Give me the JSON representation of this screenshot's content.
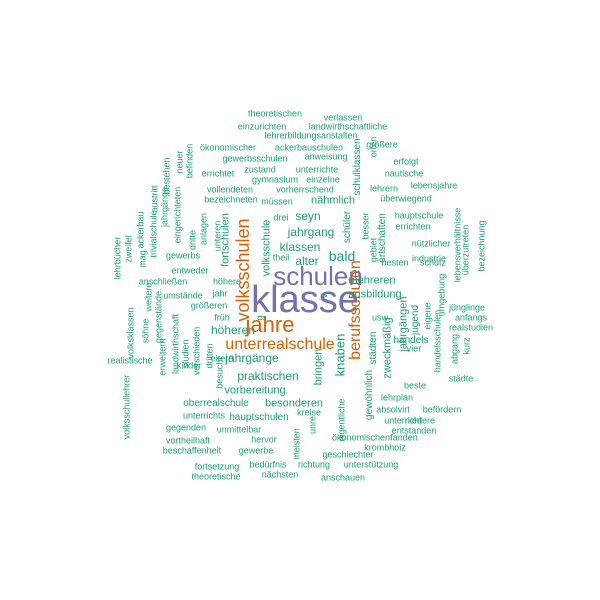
{
  "palette": {
    "teal": "#1b9e77",
    "orange": "#d95f02",
    "purple": "#7570b3"
  },
  "words": [
    {
      "text": "klasse",
      "color": "purple"
    },
    {
      "text": "schulen",
      "color": "purple"
    },
    {
      "text": "jahre",
      "color": "orange"
    },
    {
      "text": "volksschulen",
      "color": "orange"
    },
    {
      "text": "unterrealschule",
      "color": "orange"
    },
    {
      "text": "berufsschulen",
      "color": "orange"
    },
    {
      "text": "bald",
      "color": "teal"
    },
    {
      "text": "knaben",
      "color": "teal"
    },
    {
      "text": "jahrgang",
      "color": "teal"
    },
    {
      "text": "klassen",
      "color": "teal"
    },
    {
      "text": "seyn",
      "color": "teal"
    },
    {
      "text": "alter",
      "color": "teal"
    },
    {
      "text": "praktischen",
      "color": "teal"
    },
    {
      "text": "jahrgänge",
      "color": "teal"
    },
    {
      "text": "höheren",
      "color": "teal"
    },
    {
      "text": "ausbildung",
      "color": "teal"
    },
    {
      "text": "mehreren",
      "color": "teal"
    },
    {
      "text": "vorbereitung",
      "color": "teal"
    },
    {
      "text": "besonderen",
      "color": "teal"
    },
    {
      "text": "volksschule",
      "color": "teal"
    },
    {
      "text": "fortschulen",
      "color": "teal"
    },
    {
      "text": "nähmlich",
      "color": "teal"
    },
    {
      "text": "jahrgängen",
      "color": "teal"
    },
    {
      "text": "zweckmäßig",
      "color": "teal"
    },
    {
      "text": "bringen",
      "color": "teal"
    },
    {
      "text": "oberrealschule",
      "color": "teal"
    },
    {
      "text": "hauptschulen",
      "color": "teal"
    },
    {
      "text": "handels",
      "color": "teal"
    },
    {
      "text": "jugend",
      "color": "teal"
    },
    {
      "text": "gewöhnlich",
      "color": "teal"
    },
    {
      "text": "städten",
      "color": "teal"
    },
    {
      "text": "ortschaften",
      "color": "teal"
    },
    {
      "text": "schüler",
      "color": "teal"
    },
    {
      "text": "schulklassen",
      "color": "teal"
    },
    {
      "text": "iv",
      "color": "teal"
    },
    {
      "text": "theoretischen",
      "color": "teal"
    },
    {
      "text": "verlassen",
      "color": "teal"
    },
    {
      "text": "einzurichten",
      "color": "teal"
    },
    {
      "text": "landwirthschaftliche",
      "color": "teal"
    },
    {
      "text": "lehrerbildungsanstalten",
      "color": "teal"
    },
    {
      "text": "ökonomischer",
      "color": "teal"
    },
    {
      "text": "ackerbauschulen",
      "color": "teal"
    },
    {
      "text": "größere",
      "color": "teal"
    },
    {
      "text": "gewerbsschulen",
      "color": "teal"
    },
    {
      "text": "anweisung",
      "color": "teal"
    },
    {
      "text": "zustand",
      "color": "teal"
    },
    {
      "text": "unterrichte",
      "color": "teal"
    },
    {
      "text": "errichtet",
      "color": "teal"
    },
    {
      "text": "gymnasium",
      "color": "teal"
    },
    {
      "text": "einzelne",
      "color": "teal"
    },
    {
      "text": "vollendeten",
      "color": "teal"
    },
    {
      "text": "vorherrschend",
      "color": "teal"
    },
    {
      "text": "bezeichneten",
      "color": "teal"
    },
    {
      "text": "müssen",
      "color": "teal"
    },
    {
      "text": "erfolgt",
      "color": "teal"
    },
    {
      "text": "nautische",
      "color": "teal"
    },
    {
      "text": "lebensjahre",
      "color": "teal"
    },
    {
      "text": "lehrern",
      "color": "teal"
    },
    {
      "text": "überwiegend",
      "color": "teal"
    },
    {
      "text": "hauptschule",
      "color": "teal"
    },
    {
      "text": "errichten",
      "color": "teal"
    },
    {
      "text": "nützlicher",
      "color": "teal"
    },
    {
      "text": "industrie",
      "color": "teal"
    },
    {
      "text": "drei",
      "color": "teal"
    },
    {
      "text": "theil",
      "color": "teal"
    },
    {
      "text": "gewerbs",
      "color": "teal"
    },
    {
      "text": "entweder",
      "color": "teal"
    },
    {
      "text": "anschließen",
      "color": "teal"
    },
    {
      "text": "höhere",
      "color": "teal"
    },
    {
      "text": "umstände",
      "color": "teal"
    },
    {
      "text": "jahr",
      "color": "teal"
    },
    {
      "text": "größeren",
      "color": "teal"
    },
    {
      "text": "früh",
      "color": "teal"
    },
    {
      "text": "eltern",
      "color": "teal"
    },
    {
      "text": "kinder",
      "color": "teal"
    },
    {
      "text": "unterrichts",
      "color": "teal"
    },
    {
      "text": "gegenden",
      "color": "teal"
    },
    {
      "text": "unmittelbar",
      "color": "teal"
    },
    {
      "text": "vortheilhaft",
      "color": "teal"
    },
    {
      "text": "hervor",
      "color": "teal"
    },
    {
      "text": "beschaffenheit",
      "color": "teal"
    },
    {
      "text": "gewerbe",
      "color": "teal"
    },
    {
      "text": "fortsetzung",
      "color": "teal"
    },
    {
      "text": "bedürfnis",
      "color": "teal"
    },
    {
      "text": "richtung",
      "color": "teal"
    },
    {
      "text": "unterstützung",
      "color": "teal"
    },
    {
      "text": "theoretische",
      "color": "teal"
    },
    {
      "text": "nächsten",
      "color": "teal"
    },
    {
      "text": "anschauen",
      "color": "teal"
    },
    {
      "text": "kreise",
      "color": "teal"
    },
    {
      "text": "ökonomischen",
      "color": "teal"
    },
    {
      "text": "fanden",
      "color": "teal"
    },
    {
      "text": "krombholz",
      "color": "teal"
    },
    {
      "text": "geschlechter",
      "color": "teal"
    },
    {
      "text": "unterricht",
      "color": "teal"
    },
    {
      "text": "niedere",
      "color": "teal"
    },
    {
      "text": "entstanden",
      "color": "teal"
    },
    {
      "text": "absolvirt",
      "color": "teal"
    },
    {
      "text": "befördern",
      "color": "teal"
    },
    {
      "text": "lehrplan",
      "color": "teal"
    },
    {
      "text": "beste",
      "color": "teal"
    },
    {
      "text": "städte",
      "color": "teal"
    },
    {
      "text": "vier",
      "color": "teal"
    },
    {
      "text": "realstudien",
      "color": "teal"
    },
    {
      "text": "jünglinge",
      "color": "teal"
    },
    {
      "text": "anfangs",
      "color": "teal"
    },
    {
      "text": "usw",
      "color": "teal"
    },
    {
      "text": "besten",
      "color": "teal"
    },
    {
      "text": "schutz",
      "color": "teal"
    },
    {
      "text": "studien",
      "color": "teal"
    },
    {
      "text": "landwirthschaft",
      "color": "teal"
    },
    {
      "text": "unteren",
      "color": "teal"
    },
    {
      "text": "anlagen",
      "color": "teal"
    },
    {
      "text": "dritte",
      "color": "teal"
    },
    {
      "text": "dritten",
      "color": "teal"
    },
    {
      "text": "besucht",
      "color": "teal"
    },
    {
      "text": "verschieden",
      "color": "teal"
    },
    {
      "text": "volksklassen",
      "color": "teal"
    },
    {
      "text": "realistische",
      "color": "teal"
    },
    {
      "text": "volksschullehrer",
      "color": "teal"
    },
    {
      "text": "lehrbücher",
      "color": "teal"
    },
    {
      "text": "zweifel",
      "color": "teal"
    },
    {
      "text": "mag",
      "color": "teal"
    },
    {
      "text": "ackerbau",
      "color": "teal"
    },
    {
      "text": "trivialschule",
      "color": "teal"
    },
    {
      "text": "austritt",
      "color": "teal"
    },
    {
      "text": "jahrgänge",
      "color": "teal"
    },
    {
      "text": "bestehen",
      "color": "teal"
    },
    {
      "text": "neuer",
      "color": "teal"
    },
    {
      "text": "befinden",
      "color": "teal"
    },
    {
      "text": "eingerichteten",
      "color": "teal"
    },
    {
      "text": "söhne",
      "color": "teal"
    },
    {
      "text": "weitere",
      "color": "teal"
    },
    {
      "text": "gegenstände",
      "color": "teal"
    },
    {
      "text": "erweitern",
      "color": "teal"
    },
    {
      "text": "besser",
      "color": "teal"
    },
    {
      "text": "gebiet",
      "color": "teal"
    },
    {
      "text": "orten",
      "color": "teal"
    },
    {
      "text": "lebensverhältnisse",
      "color": "teal"
    },
    {
      "text": "überzutreten",
      "color": "teal"
    },
    {
      "text": "bezeichnung",
      "color": "teal"
    },
    {
      "text": "umgebung",
      "color": "teal"
    },
    {
      "text": "eigene",
      "color": "teal"
    },
    {
      "text": "handelsschulen",
      "color": "teal"
    },
    {
      "text": "abgang",
      "color": "teal"
    },
    {
      "text": "kurz",
      "color": "teal"
    },
    {
      "text": "meisten",
      "color": "teal"
    },
    {
      "text": "eigentliche",
      "color": "teal"
    },
    {
      "text": "unre",
      "color": "teal"
    },
    {
      "text": "g",
      "color": "teal"
    }
  ]
}
